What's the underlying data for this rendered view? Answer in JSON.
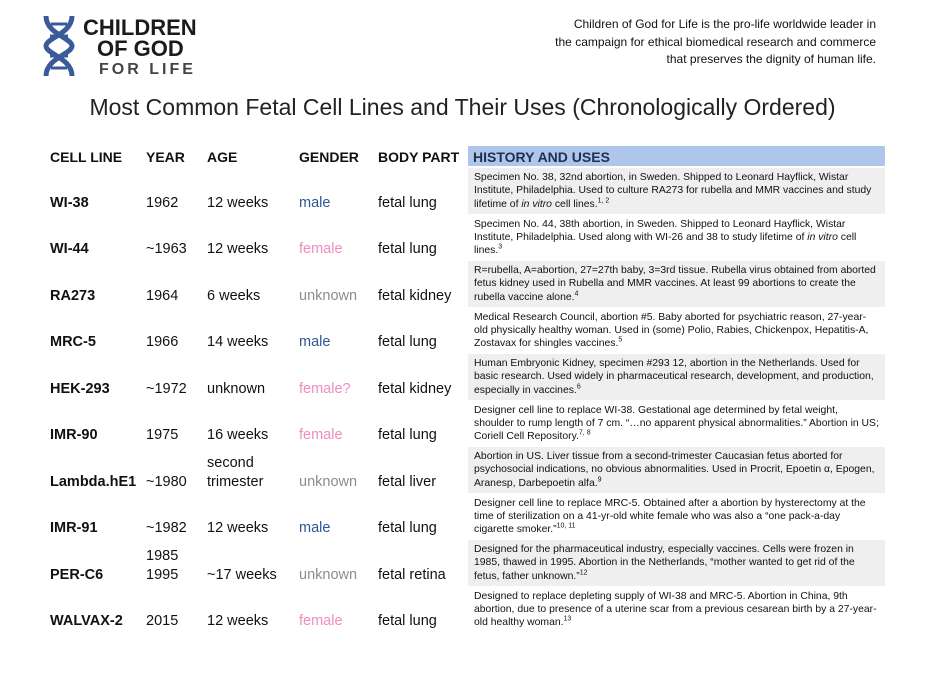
{
  "header": {
    "logo": [
      "CHILDREN",
      "OF GOD",
      "FOR LIFE"
    ],
    "tagline": [
      "Children of God for Life is the pro-life worldwide leader in",
      "the campaign for ethical biomedical research and commerce",
      "that preserves the dignity of human life."
    ]
  },
  "title": "Most Common Fetal Cell Lines and Their Uses (Chronologically Ordered)",
  "table": {
    "columns": [
      "CELL LINE",
      "YEAR",
      "AGE",
      "GENDER",
      "BODY PART",
      "HISTORY AND USES"
    ],
    "rows": [
      {
        "cell_line": "WI-38",
        "year": [
          "1962"
        ],
        "age": [
          "12 weeks"
        ],
        "gender": "male",
        "gender_color": "#2f5597",
        "body_part": "fetal lung",
        "history": [
          "Specimen No. 38, 32nd abortion, in Sweden. Shipped to Leonard Hayflick, Wistar Institute, Philadelphia. Used to culture RA273 for rubella and MMR vaccines and study lifetime of ",
          {
            "em": "in vitro"
          },
          " cell lines.",
          {
            "sup": "1, 2"
          }
        ]
      },
      {
        "cell_line": "WI-44",
        "year": [
          "~1963"
        ],
        "age": [
          "12 weeks"
        ],
        "gender": "female",
        "gender_color": "#f08cc0",
        "body_part": "fetal lung",
        "history": [
          "Specimen No. 44, 38th abortion, in Sweden. Shipped to Leonard Hayflick, Wistar Institute, Philadelphia. Used along with WI-26 and 38 to study lifetime of ",
          {
            "em": "in vitro"
          },
          " cell lines.",
          {
            "sup": "3"
          }
        ]
      },
      {
        "cell_line": "RA273",
        "year": [
          "1964"
        ],
        "age": [
          "6 weeks"
        ],
        "gender": "unknown",
        "gender_color": "#8c8c8c",
        "body_part": "fetal kidney",
        "history": [
          "R=rubella, A=abortion, 27=27th baby, 3=3rd tissue.  Rubella virus obtained from aborted fetus kidney used in Rubella and MMR vaccines. At least 99 abortions to create the rubella vaccine alone.",
          {
            "sup": "4"
          }
        ]
      },
      {
        "cell_line": "MRC-5",
        "year": [
          "1966"
        ],
        "age": [
          "14 weeks"
        ],
        "gender": "male",
        "gender_color": "#2f5597",
        "body_part": "fetal lung",
        "history": [
          "Medical Research Council, abortion #5. Baby aborted for psychiatric reason, 27-year-old physically healthy woman. Used in (some) Polio, Rabies, Chickenpox, Hepatitis-A, Zostavax for shingles vaccines.",
          {
            "sup": "5"
          }
        ]
      },
      {
        "cell_line": "HEK-293",
        "year": [
          "~1972"
        ],
        "age": [
          "unknown"
        ],
        "gender": "female?",
        "gender_color": "#f08cc0",
        "body_part": "fetal kidney",
        "history": [
          "Human Embryonic Kidney, specimen #293 12, abortion in the Netherlands. Used for basic research. Used widely in pharmaceutical research, development, and production, especially in vaccines.",
          {
            "sup": "6"
          }
        ]
      },
      {
        "cell_line": "IMR-90",
        "year": [
          "1975"
        ],
        "age": [
          "16 weeks"
        ],
        "gender": "female",
        "gender_color": "#f08cc0",
        "body_part": "fetal lung",
        "history": [
          "Designer cell line to replace WI-38. Gestational age determined by fetal weight, shoulder to rump length of 7 cm. “…no apparent physical abnormalities.” Abortion in US; Coriell Cell Repository.",
          {
            "sup": "7, 8"
          }
        ]
      },
      {
        "cell_line": "Lambda.hE1",
        "year": [
          "~1980"
        ],
        "age": [
          "second",
          "trimester"
        ],
        "gender": "unknown",
        "gender_color": "#8c8c8c",
        "body_part": "fetal liver",
        "history": [
          "Abortion in US. Liver tissue from a second-trimester Caucasian fetus aborted for psychosocial indications, no obvious abnormalities. Used in Procrit, Epoetin α, Epogen, Aranesp, Darbepoetin alfa.",
          {
            "sup": "9"
          }
        ]
      },
      {
        "cell_line": "IMR-91",
        "year": [
          "~1982"
        ],
        "age": [
          "12 weeks"
        ],
        "gender": "male",
        "gender_color": "#2f5597",
        "body_part": "fetal lung",
        "history": [
          "Designer cell line to replace MRC-5. Obtained after a abortion by hysterectomy at the time of sterilization on a 41-yr-old white female who was also a “one pack-a-day cigarette smoker.”",
          {
            "sup": "10, 11"
          }
        ]
      },
      {
        "cell_line": "PER-C6",
        "year": [
          "1985",
          "1995"
        ],
        "age": [
          "~17 weeks"
        ],
        "gender": "unknown",
        "gender_color": "#8c8c8c",
        "body_part": "fetal retina",
        "history": [
          "Designed for the pharmaceutical industry, especially vaccines. Cells were frozen in 1985, thawed in 1995. Abortion in the Netherlands, “mother wanted to get rid of the fetus, father unknown.”",
          {
            "sup": "12"
          }
        ]
      },
      {
        "cell_line": "WALVAX-2",
        "year": [
          "2015"
        ],
        "age": [
          "12 weeks"
        ],
        "gender": "female",
        "gender_color": "#f08cc0",
        "body_part": "fetal lung",
        "history": [
          "Designed to replace depleting supply of WI-38 and MRC-5. Abortion in China, 9th abortion, due to presence of a uterine scar from a previous cesarean birth by a 27-year-old healthy woman.",
          {
            "sup": "13"
          }
        ]
      }
    ]
  }
}
